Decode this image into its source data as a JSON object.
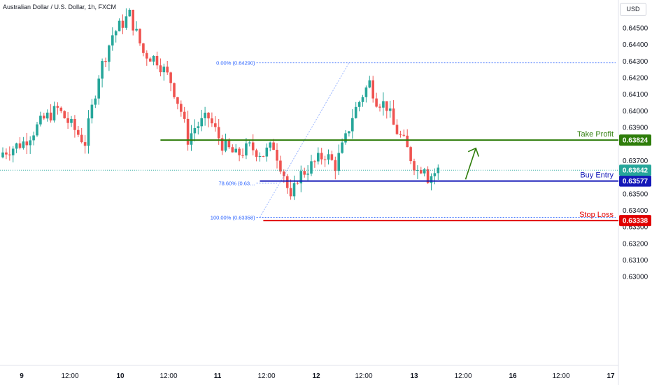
{
  "header": {
    "symbol_title": "Australian Dollar / U.S. Dollar, 1h, FXCM",
    "currency_button": "USD"
  },
  "colors": {
    "up": "#26a69a",
    "down": "#ef5350",
    "take_profit": "#2e7d0a",
    "buy_entry": "#1418b8",
    "stop_loss": "#e00000",
    "fib": "#2962ff",
    "current_price_tag": "#26a69a"
  },
  "chart_data": {
    "type": "candlestick",
    "interval": "1h",
    "y_axis": {
      "range": [
        0.6292,
        0.6463
      ],
      "ticks": [
        "0.64500",
        "0.64400",
        "0.64300",
        "0.64200",
        "0.64100",
        "0.64000",
        "0.63900",
        "0.63700",
        "0.63500",
        "0.63400",
        "0.63300",
        "0.63200",
        "0.63100",
        "0.63000"
      ]
    },
    "x_axis": {
      "ticks": [
        "9",
        "12:00",
        "10",
        "12:00",
        "11",
        "12:00",
        "12",
        "12:00",
        "13",
        "12:00",
        "16",
        "12:00",
        "17"
      ]
    },
    "levels": [
      {
        "name": "Take Profit",
        "value": 0.63824,
        "label": "0.63824"
      },
      {
        "name": "Buy Entry",
        "value": 0.63577,
        "label": "0.63577"
      },
      {
        "name": "Stop Loss",
        "value": 0.63338,
        "label": "0.63338"
      }
    ],
    "current_price": {
      "value": 0.63642,
      "label": "0.63642"
    },
    "fibonacci": [
      {
        "label": "0.00% (0.64290)",
        "value": 0.6429
      },
      {
        "label": "78.60% (0.63…",
        "value": 0.63565
      },
      {
        "label": "100.00% (0.63358)",
        "value": 0.63358
      }
    ],
    "close_path": [
      [
        0,
        0.6375
      ],
      [
        6,
        0.6381
      ],
      [
        12,
        0.6395
      ],
      [
        16,
        0.6401
      ],
      [
        20,
        0.6391
      ],
      [
        24,
        0.6381
      ],
      [
        28,
        0.6422
      ],
      [
        32,
        0.6446
      ],
      [
        37,
        0.6458
      ],
      [
        41,
        0.6435
      ],
      [
        45,
        0.6431
      ],
      [
        49,
        0.6418
      ],
      [
        52,
        0.64
      ],
      [
        54,
        0.6383
      ],
      [
        56,
        0.639
      ],
      [
        60,
        0.6396
      ],
      [
        64,
        0.638
      ],
      [
        68,
        0.6373
      ],
      [
        72,
        0.6378
      ],
      [
        76,
        0.6374
      ],
      [
        79,
        0.6379
      ],
      [
        82,
        0.6362
      ],
      [
        84,
        0.6345
      ],
      [
        86,
        0.636
      ],
      [
        90,
        0.6367
      ],
      [
        94,
        0.6374
      ],
      [
        97,
        0.6367
      ],
      [
        100,
        0.6383
      ],
      [
        102,
        0.6397
      ],
      [
        105,
        0.641
      ],
      [
        107,
        0.6417
      ],
      [
        109,
        0.6407
      ],
      [
        112,
        0.6403
      ],
      [
        114,
        0.6391
      ],
      [
        117,
        0.6381
      ],
      [
        119,
        0.6372
      ],
      [
        121,
        0.6364
      ],
      [
        123,
        0.6368
      ],
      [
        124,
        0.636
      ],
      [
        127,
        0.63642
      ]
    ],
    "arrow": {
      "from": [
        135,
        0.63587
      ],
      "to": [
        138,
        0.63775
      ]
    }
  }
}
